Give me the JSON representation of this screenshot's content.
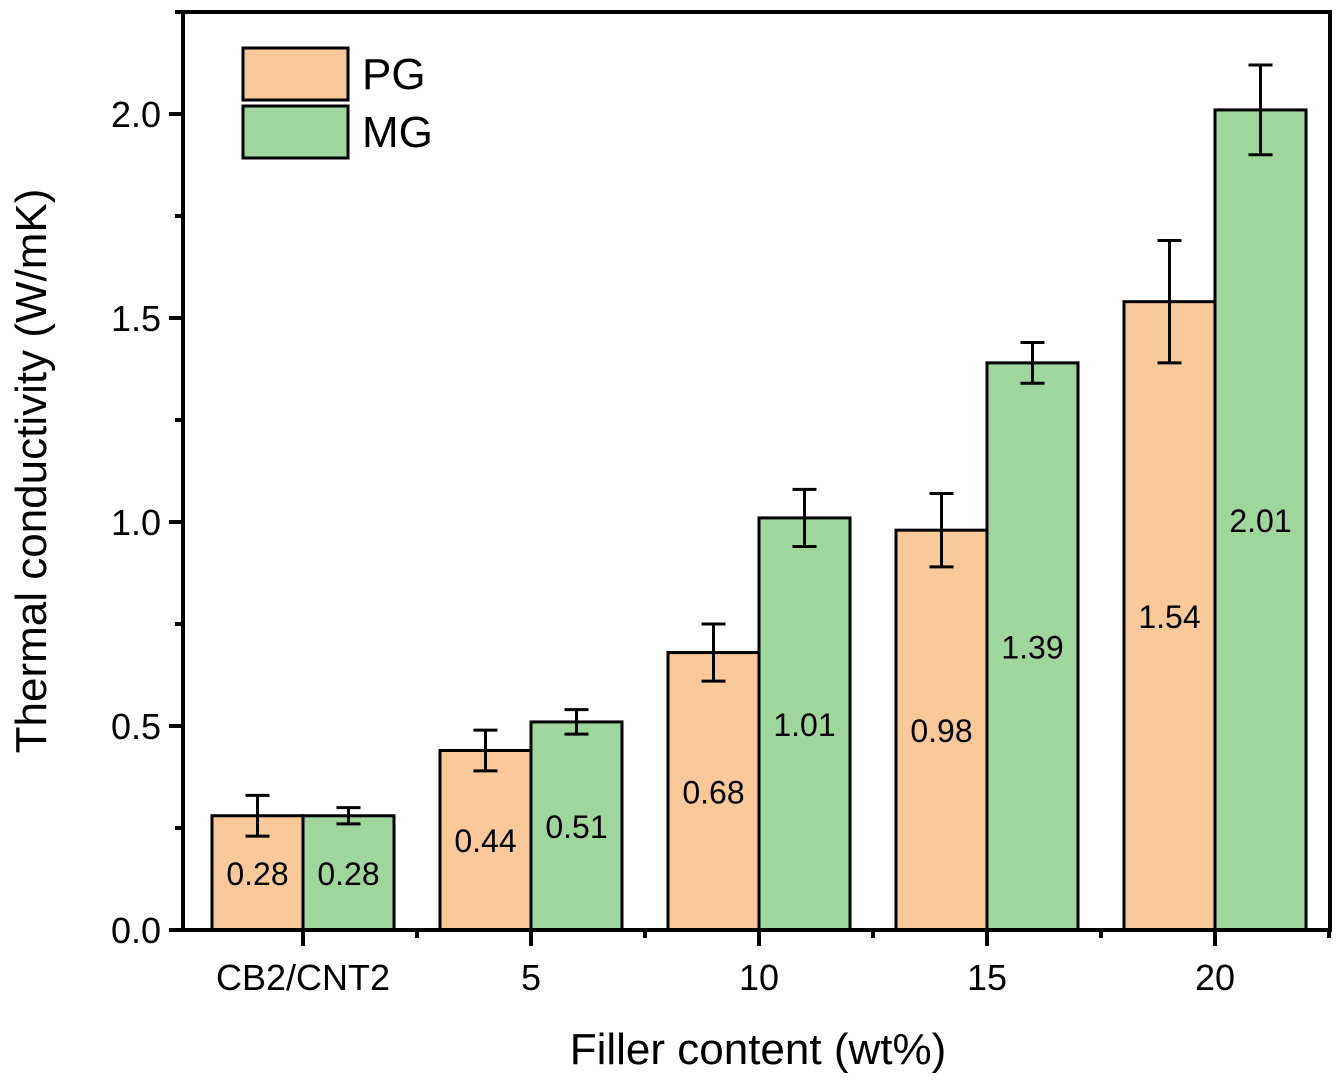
{
  "chart_data": {
    "type": "bar",
    "title": "",
    "xlabel": "Filler content (wt%)",
    "ylabel": "Thermal conductivity (W/mK)",
    "categories": [
      "CB2/CNT2",
      "5",
      "10",
      "15",
      "20"
    ],
    "ylim": [
      0,
      2.25
    ],
    "yticks": [
      0.0,
      0.5,
      1.0,
      1.5,
      2.0
    ],
    "ytick_labels": [
      "0.0",
      "0.5",
      "1.0",
      "1.5",
      "2.0"
    ],
    "grid": false,
    "legend_position": "top-left",
    "series": [
      {
        "name": "PG",
        "color": "#f9c99a",
        "values": [
          0.28,
          0.44,
          0.68,
          0.98,
          1.54
        ],
        "errors": [
          0.05,
          0.05,
          0.07,
          0.09,
          0.15
        ],
        "labels": [
          "0.28",
          "0.44",
          "0.68",
          "0.98",
          "1.54"
        ]
      },
      {
        "name": "MG",
        "color": "#9ed69b",
        "values": [
          0.28,
          0.51,
          1.01,
          1.39,
          2.01
        ],
        "errors": [
          0.02,
          0.03,
          0.07,
          0.05,
          0.11
        ],
        "labels": [
          "0.28",
          "0.51",
          "1.01",
          "1.39",
          "2.01"
        ]
      }
    ]
  }
}
